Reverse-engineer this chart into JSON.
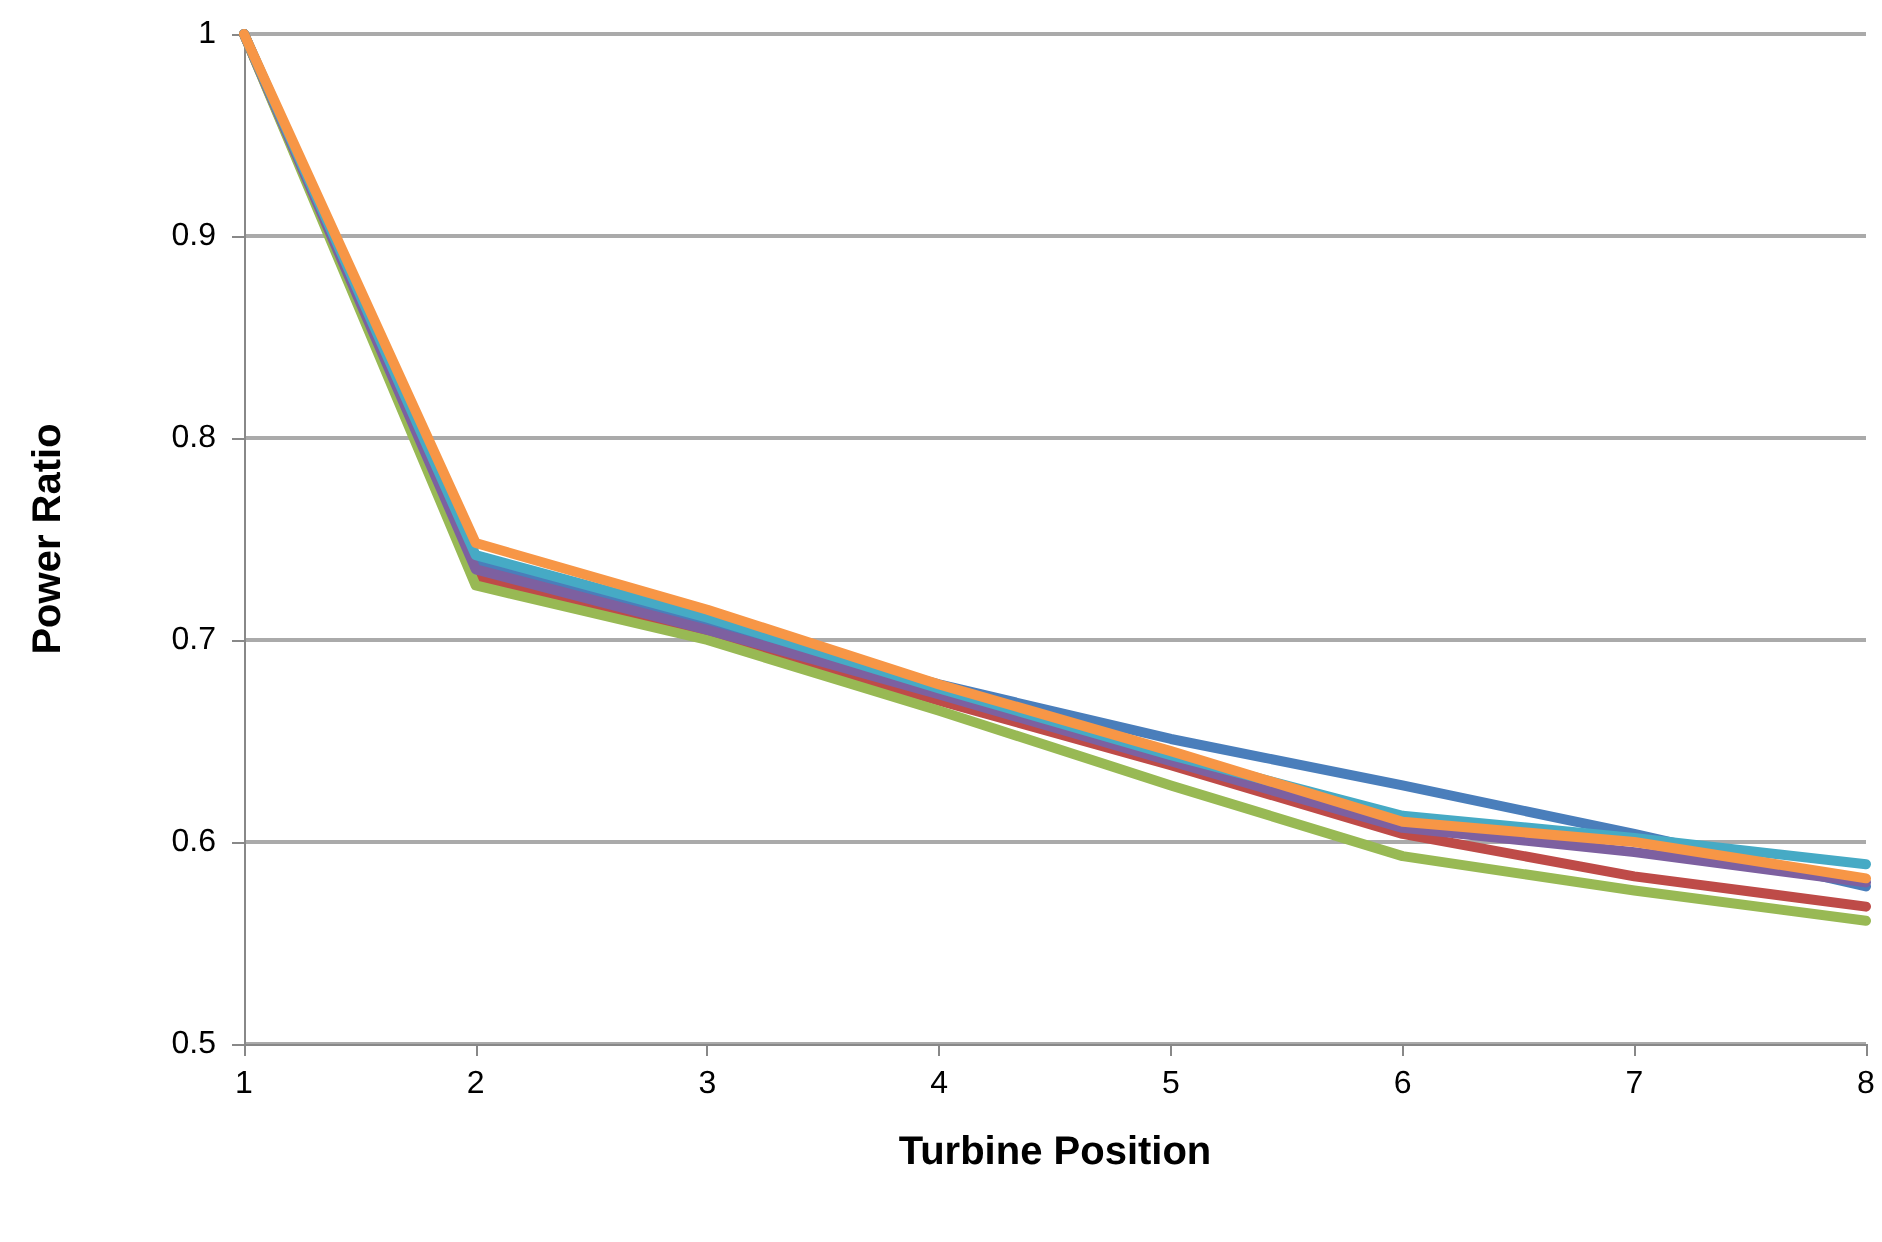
{
  "chart_data": {
    "type": "line",
    "xlabel": "Turbine Position",
    "ylabel": "Power Ratio",
    "x": [
      1,
      2,
      3,
      4,
      5,
      6,
      7,
      8
    ],
    "xlim": [
      1,
      8
    ],
    "xticks": [
      1,
      2,
      3,
      4,
      5,
      6,
      7,
      8
    ],
    "ylim": [
      0.5,
      1
    ],
    "yticks": [
      0.5,
      0.6,
      0.7,
      0.8,
      0.9,
      1
    ],
    "grid": "y",
    "marker": "none",
    "line_style": "solid",
    "series": [
      {
        "color": "#4a7ebb",
        "values": [
          1,
          0.738,
          0.708,
          0.678,
          0.651,
          0.628,
          0.604,
          0.578
        ]
      },
      {
        "color": "#be4b48",
        "values": [
          1,
          0.731,
          0.703,
          0.67,
          0.638,
          0.604,
          0.583,
          0.568
        ]
      },
      {
        "color": "#98b954",
        "values": [
          1,
          0.727,
          0.7,
          0.665,
          0.628,
          0.593,
          0.576,
          0.561
        ]
      },
      {
        "color": "#7d60a0",
        "values": [
          1,
          0.735,
          0.705,
          0.673,
          0.64,
          0.607,
          0.595,
          0.58
        ]
      },
      {
        "color": "#46aac5",
        "values": [
          1,
          0.742,
          0.711,
          0.676,
          0.643,
          0.613,
          0.602,
          0.589
        ]
      },
      {
        "color": "#f79646",
        "values": [
          1,
          0.748,
          0.715,
          0.678,
          0.645,
          0.61,
          0.6,
          0.582
        ]
      }
    ]
  }
}
